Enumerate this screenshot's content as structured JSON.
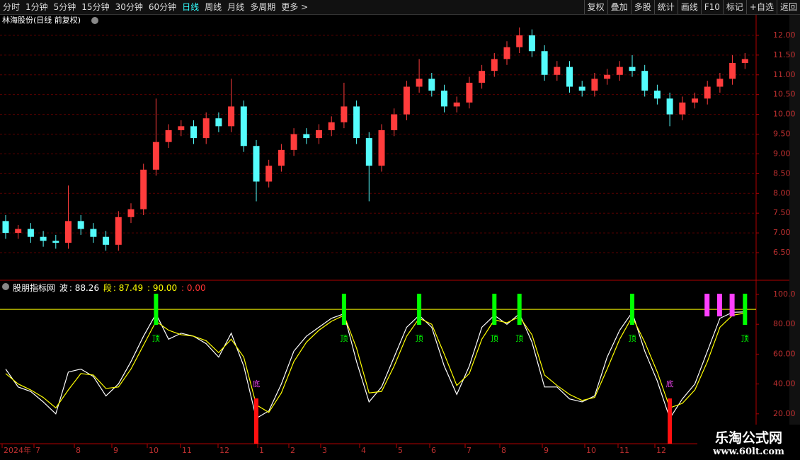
{
  "toolbar": {
    "left": [
      "分时",
      "1分钟",
      "5分钟",
      "15分钟",
      "30分钟",
      "60分钟",
      "日线",
      "周线",
      "月线",
      "多周期",
      "更多 >"
    ],
    "right": [
      "复权",
      "叠加",
      "多股",
      "统计",
      "画线",
      "F10",
      "标记",
      "+自选",
      "返回"
    ]
  },
  "chart_data": [
    {
      "type": "candlestick",
      "title": "林海股份(日线 前复权)",
      "open": [
        7.3,
        7.0,
        7.1,
        6.9,
        6.8,
        6.75,
        7.3,
        7.1,
        6.9,
        6.7,
        7.4,
        7.6,
        8.6,
        9.3,
        9.6,
        9.7,
        9.4,
        9.9,
        9.7,
        10.2,
        9.2,
        8.3,
        8.7,
        9.1,
        9.5,
        9.4,
        9.6,
        9.8,
        10.2,
        9.4,
        8.7,
        9.6,
        10.0,
        10.7,
        10.9,
        10.6,
        10.2,
        10.3,
        10.8,
        11.1,
        11.4,
        11.7,
        12.0,
        11.6,
        11.0,
        11.2,
        10.7,
        10.6,
        10.9,
        11.0,
        11.2,
        11.1,
        10.6,
        10.4,
        10.0,
        10.3,
        10.4,
        10.7,
        10.9,
        11.3
      ],
      "high": [
        7.45,
        7.2,
        7.25,
        7.05,
        6.95,
        8.2,
        7.45,
        7.25,
        7.05,
        7.55,
        7.75,
        8.75,
        10.4,
        9.75,
        9.85,
        9.85,
        10.05,
        10.05,
        10.9,
        10.35,
        9.35,
        8.85,
        9.25,
        9.65,
        9.65,
        9.75,
        9.95,
        10.8,
        10.35,
        9.55,
        9.75,
        10.15,
        10.85,
        11.4,
        11.05,
        10.75,
        10.45,
        10.95,
        11.25,
        11.55,
        11.85,
        12.2,
        12.15,
        11.75,
        11.35,
        11.35,
        10.85,
        11.05,
        11.15,
        11.35,
        11.5,
        11.25,
        10.75,
        10.55,
        10.45,
        10.55,
        10.85,
        11.05,
        11.5,
        11.55
      ],
      "low": [
        6.85,
        6.85,
        6.75,
        6.65,
        6.6,
        6.6,
        6.95,
        6.75,
        6.55,
        6.55,
        7.25,
        7.45,
        8.45,
        9.15,
        9.45,
        9.25,
        9.25,
        9.55,
        9.55,
        9.05,
        7.8,
        8.15,
        8.55,
        8.95,
        9.25,
        9.25,
        9.45,
        9.65,
        9.25,
        7.8,
        8.55,
        9.45,
        9.85,
        10.55,
        10.45,
        10.05,
        10.05,
        10.15,
        10.65,
        10.95,
        11.25,
        11.55,
        11.45,
        10.85,
        10.85,
        10.55,
        10.45,
        10.45,
        10.75,
        10.85,
        10.95,
        10.45,
        10.25,
        9.7,
        9.85,
        10.15,
        10.25,
        10.55,
        10.75,
        11.15
      ],
      "close": [
        7.0,
        7.1,
        6.9,
        6.8,
        6.75,
        7.3,
        7.1,
        6.9,
        6.7,
        7.4,
        7.6,
        8.6,
        9.3,
        9.6,
        9.7,
        9.4,
        9.9,
        9.7,
        10.2,
        9.2,
        8.3,
        8.7,
        9.1,
        9.5,
        9.4,
        9.6,
        9.8,
        10.2,
        9.4,
        8.7,
        9.6,
        10.0,
        10.7,
        10.9,
        10.6,
        10.2,
        10.3,
        10.8,
        11.1,
        11.4,
        11.7,
        12.0,
        11.6,
        11.0,
        11.2,
        10.7,
        10.6,
        10.9,
        11.0,
        11.2,
        11.1,
        10.6,
        10.4,
        10.0,
        10.3,
        10.4,
        10.7,
        10.9,
        11.3,
        11.4
      ],
      "up_color": "#ff3c3c",
      "down_color": "#54fcfc",
      "ylim": [
        5.82,
        12.5
      ],
      "yticks": [
        {
          "value": 6.5,
          "label": "6.50"
        },
        {
          "value": 7,
          "label": "7.00"
        },
        {
          "value": 7.5,
          "label": "7.50"
        },
        {
          "value": 8,
          "label": "8.00"
        },
        {
          "value": 8.5,
          "label": "8.50"
        },
        {
          "value": 9,
          "label": "9.00"
        },
        {
          "value": 9.5,
          "label": "9.50"
        },
        {
          "value": 10,
          "label": "10.00"
        },
        {
          "value": 10.5,
          "label": "10.50"
        },
        {
          "value": 11,
          "label": "11.00"
        },
        {
          "value": 11.5,
          "label": "11.50"
        },
        {
          "value": 12,
          "label": "12.00"
        }
      ],
      "grid": true,
      "x_labels": [
        "2024年",
        "7",
        "8",
        "9",
        "10",
        "11",
        "12",
        "1",
        "2",
        "3",
        "4",
        "5",
        "6",
        "7",
        "8",
        "9",
        "10",
        "11",
        "12"
      ]
    },
    {
      "type": "line",
      "title": "股朋指标网",
      "series": [
        {
          "name": "波",
          "color": "#ffffff",
          "values": [
            50,
            38,
            35,
            28,
            20,
            48,
            50,
            45,
            32,
            40,
            55,
            72,
            87,
            70,
            74,
            72,
            67,
            58,
            74,
            52,
            17,
            22,
            40,
            62,
            72,
            78,
            84,
            87,
            55,
            28,
            38,
            58,
            78,
            86,
            78,
            52,
            33,
            52,
            78,
            86,
            80,
            87,
            68,
            38,
            38,
            30,
            28,
            32,
            58,
            76,
            88,
            62,
            42,
            17,
            30,
            40,
            62,
            84,
            88,
            88.26
          ]
        },
        {
          "name": "段",
          "color": "#ffff00",
          "values": [
            47,
            40,
            36,
            31,
            24,
            36,
            47,
            46,
            37,
            38,
            50,
            66,
            82,
            76,
            73,
            72,
            69,
            61,
            70,
            58,
            26,
            21,
            34,
            55,
            68,
            76,
            82,
            86,
            64,
            34,
            35,
            52,
            72,
            84,
            80,
            60,
            39,
            47,
            70,
            83,
            81,
            85,
            73,
            46,
            39,
            33,
            29,
            31,
            50,
            70,
            85,
            68,
            48,
            24,
            27,
            36,
            55,
            78,
            86,
            87.49
          ]
        }
      ],
      "threshold": {
        "value": 90,
        "label": "90.00",
        "color": "#ffff00"
      },
      "extra": {
        "value": 0,
        "label": "0.00",
        "color": "#ff3030"
      },
      "top_signals": {
        "label": "顶",
        "color": "#00ff00",
        "at": [
          12,
          27,
          33,
          39,
          41,
          50,
          59
        ]
      },
      "bottom_signals": {
        "label": "底",
        "color": "#ff1010",
        "label_color": "#e040e0",
        "at": [
          20,
          53
        ]
      },
      "end_signals": {
        "color": "#ff40ff",
        "at": [
          56,
          57,
          58
        ]
      },
      "ylim": [
        0,
        109
      ],
      "yticks": [
        {
          "value": 20,
          "label": "20.00"
        },
        {
          "value": 40,
          "label": "40.00"
        },
        {
          "value": 60,
          "label": "60.00"
        },
        {
          "value": 80,
          "label": "80.00"
        },
        {
          "value": 100,
          "label": "100.0"
        }
      ]
    }
  ],
  "watermark": {
    "title": "乐淘公式网",
    "url": "www.60lt.com"
  }
}
